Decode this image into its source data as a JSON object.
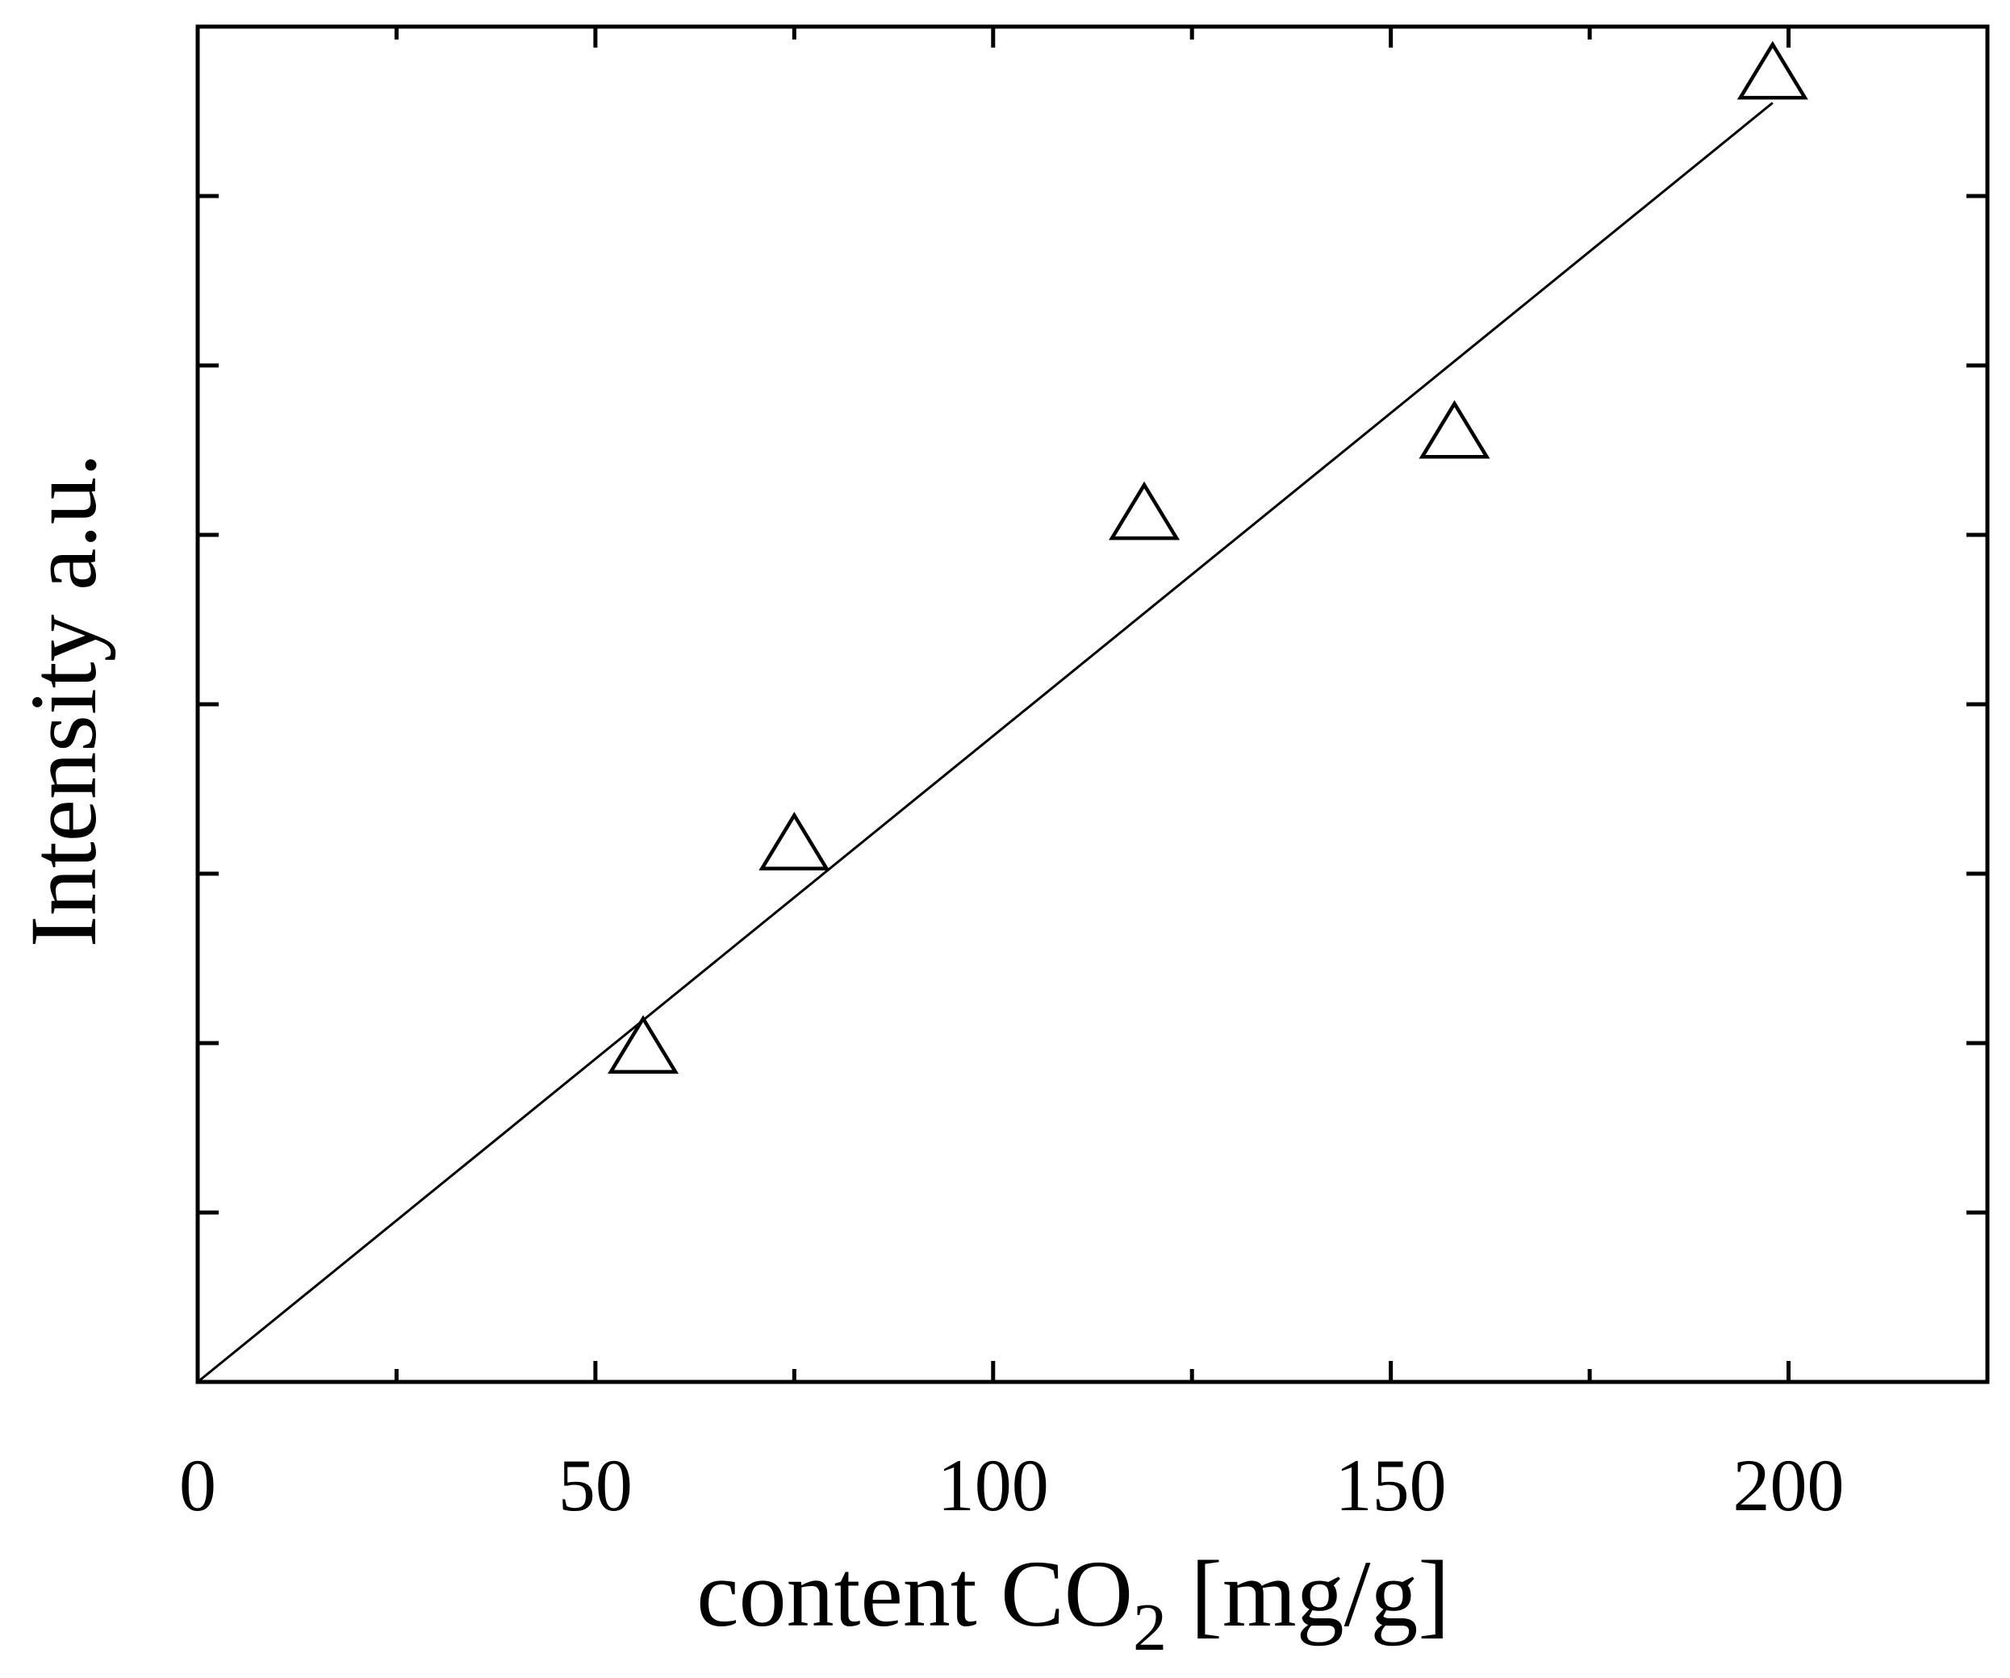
{
  "chart_data": {
    "type": "scatter",
    "xlabel": {
      "main": "content CO",
      "subscript": "2",
      "suffix": " [mg/g]"
    },
    "ylabel": "Intensity a.u.",
    "xlim": [
      0,
      225
    ],
    "ylim": [
      0,
      8
    ],
    "x_ticks": [
      0,
      50,
      100,
      150,
      200
    ],
    "x_minor_ticks": [
      25,
      75,
      125,
      175
    ],
    "y_ticks": [
      1,
      2,
      3,
      4,
      5,
      6,
      7
    ],
    "y_tick_labels_shown": false,
    "marker": "open-triangle",
    "colors": {
      "ink": "#000000",
      "background": "#ffffff"
    },
    "series": [
      {
        "points": [
          {
            "x": 56,
            "y": 1.95
          },
          {
            "x": 75,
            "y": 3.15
          },
          {
            "x": 119,
            "y": 5.1
          },
          {
            "x": 158,
            "y": 5.58
          },
          {
            "x": 198,
            "y": 7.7
          }
        ]
      }
    ],
    "fit_line": {
      "x": [
        0,
        198
      ],
      "y": [
        0,
        7.55
      ]
    }
  }
}
